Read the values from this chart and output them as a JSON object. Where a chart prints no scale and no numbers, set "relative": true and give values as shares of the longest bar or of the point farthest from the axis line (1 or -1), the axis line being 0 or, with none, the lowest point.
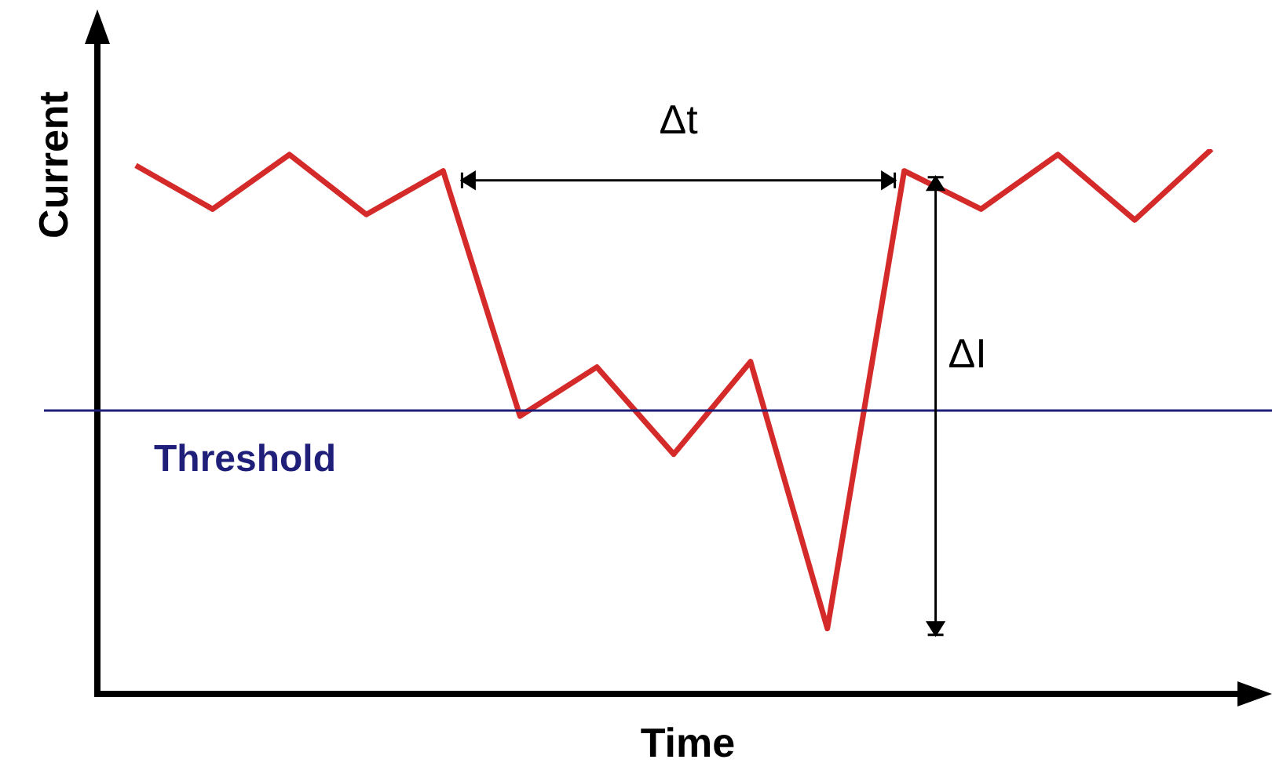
{
  "chart_data": {
    "type": "line",
    "xlabel": "Time",
    "ylabel": "Current",
    "relative": true,
    "categories": [
      null,
      null,
      null,
      null,
      null,
      null,
      null,
      null,
      null,
      null,
      null,
      null,
      null,
      null,
      null
    ],
    "series": [
      {
        "color": "#d42a2a",
        "values": [
          0.97,
          0.89,
          0.99,
          0.88,
          0.96,
          0.51,
          0.6,
          0.44,
          0.61,
          0.12,
          0.96,
          0.89,
          0.99,
          0.87,
          1
        ]
      }
    ],
    "ref_lines": [
      {
        "axis": "y",
        "value": 0.52,
        "label": "Threshold",
        "color": "#1f1f7a"
      }
    ],
    "annotations": [
      "Δt",
      "ΔI"
    ],
    "marker": "none",
    "grid": false,
    "legend": false
  }
}
